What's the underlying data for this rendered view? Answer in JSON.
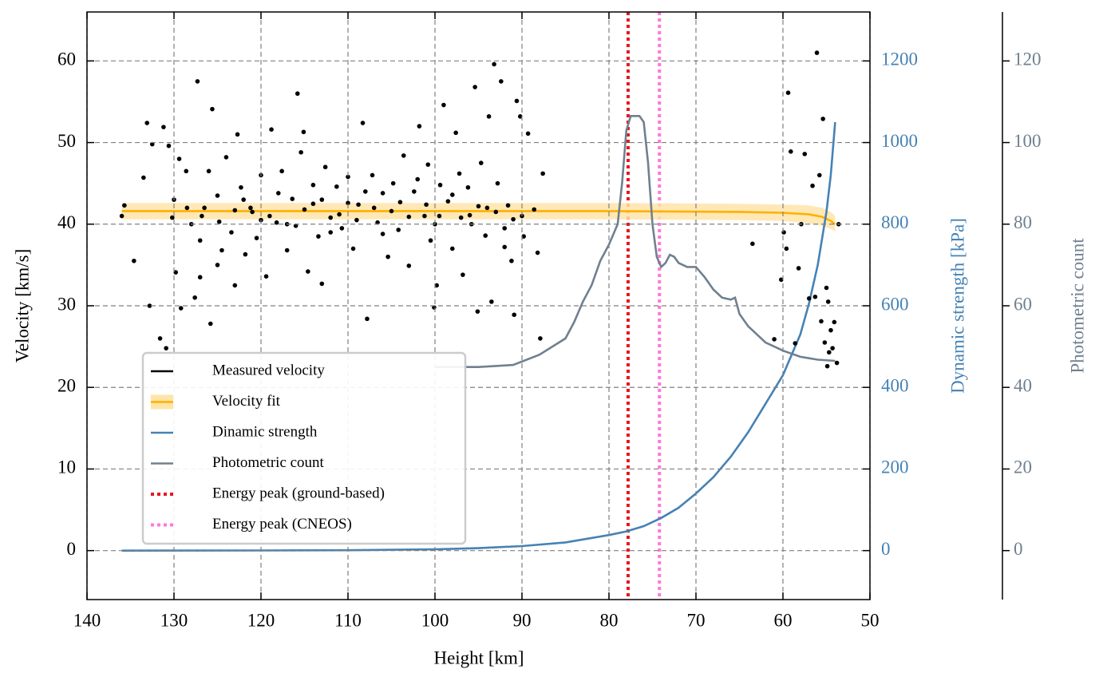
{
  "chart_data": {
    "type": "combo",
    "xlabel": "Height [km]",
    "ylabel": "Velocity [km/s]",
    "y2label": "Dynamic strength [kPa]",
    "y3label": "Photometric count",
    "xlim": [
      140,
      50
    ],
    "xticks": [
      140,
      130,
      120,
      110,
      100,
      90,
      80,
      70,
      60,
      50
    ],
    "ylim": [
      -6,
      66
    ],
    "yticks": [
      0,
      10,
      20,
      30,
      40,
      50,
      60
    ],
    "y2lim": [
      -120,
      1320
    ],
    "y2ticks": [
      0,
      200,
      400,
      600,
      800,
      1000,
      1200
    ],
    "y3lim": [
      -12,
      132
    ],
    "y3ticks": [
      0,
      20,
      40,
      60,
      80,
      100,
      120
    ],
    "grid": true,
    "legend": "lower left",
    "series": [
      {
        "name": "Measured velocity",
        "type": "scatter",
        "color": "#000000",
        "axis": "y",
        "x": [
          136,
          135.7,
          134.6,
          133.5,
          133.1,
          132.8,
          132.5,
          131.6,
          131.2,
          130.9,
          130.6,
          130.2,
          129.8,
          129.4,
          129.2,
          128.6,
          128,
          127.6,
          127.3,
          127,
          126.5,
          126,
          125.8,
          125.6,
          125,
          124.5,
          124,
          123.4,
          123,
          122.7,
          122.3,
          121.8,
          121.2,
          120.5,
          120,
          119.4,
          118.8,
          118.2,
          117.6,
          117,
          116.4,
          115.8,
          115.4,
          115.1,
          114.6,
          114,
          113.4,
          113,
          112.6,
          112,
          111.3,
          110.7,
          110,
          109.4,
          108.8,
          108.3,
          107.8,
          107.2,
          106.6,
          106,
          105.4,
          104.8,
          104.2,
          103.6,
          103,
          102.4,
          101.8,
          101.2,
          100.8,
          100.5,
          100.1,
          99.8,
          99.4,
          99,
          98.5,
          98,
          97.6,
          97.2,
          96.8,
          96.2,
          95.8,
          95.4,
          95.1,
          94.7,
          94.2,
          93.8,
          93.5,
          93.2,
          92.8,
          92.4,
          92,
          91.6,
          91.2,
          90.9,
          90.6,
          90.2,
          89.8,
          89.3,
          88.6,
          88.2,
          87.9,
          87.6,
          121,
          119,
          117,
          115,
          113,
          111,
          109,
          107,
          105,
          103,
          101,
          99.5,
          97,
          95,
          93,
          91,
          120,
          118,
          116,
          114,
          112,
          110,
          108,
          106,
          104,
          102,
          100,
          98,
          96,
          94,
          92,
          90,
          128.5,
          126.8,
          124.8,
          123,
          122,
          130,
          127,
          125,
          63.5,
          61,
          60.2,
          59.9,
          59.6,
          59.4,
          59.1,
          58.6,
          58.2,
          57.9,
          57.5,
          57,
          56.6,
          56.3,
          56.1,
          55.8,
          55.6,
          55.4,
          55.2,
          55,
          54.9,
          54.8,
          54.7,
          54.5,
          54.3,
          54.1,
          53.8,
          53.6
        ],
        "values": [
          41,
          42.3,
          35.5,
          45.7,
          52.4,
          30,
          49.8,
          26,
          51.9,
          24.8,
          49.6,
          40.8,
          34.1,
          48,
          29.7,
          46.5,
          40,
          31,
          57.5,
          33.5,
          42,
          46.5,
          27.8,
          54.1,
          43.5,
          36.8,
          48.2,
          39,
          32.5,
          51,
          44.5,
          36.3,
          42,
          38.3,
          46,
          33.6,
          51.6,
          40.2,
          46.5,
          36.8,
          43.1,
          56,
          48.8,
          51.3,
          34.2,
          42.5,
          38.5,
          32.7,
          47,
          40.8,
          44.6,
          39.5,
          45.8,
          37,
          42.4,
          52.4,
          28.4,
          46,
          40.2,
          43.8,
          36,
          45,
          39.3,
          48.4,
          34.9,
          44,
          52,
          41,
          47.3,
          38,
          29.8,
          32.5,
          44.8,
          54.6,
          42.8,
          37,
          51.2,
          46.2,
          33.8,
          44.5,
          40,
          56.8,
          29.3,
          47.5,
          38.6,
          53.2,
          30.5,
          59.6,
          45,
          57.5,
          39.5,
          42.3,
          35.5,
          28.9,
          55.1,
          53.2,
          38.5,
          51.1,
          41.8,
          36.5,
          26,
          46.2,
          41.5,
          41,
          40,
          41.8,
          43,
          41.2,
          40.5,
          42,
          41.6,
          40.9,
          42.4,
          41,
          40.8,
          42.2,
          41.5,
          40.6,
          40.5,
          43.8,
          39.8,
          44.8,
          39,
          42.6,
          44,
          38.8,
          42.7,
          45.5,
          40,
          43.6,
          41.1,
          42,
          37.2,
          41,
          42,
          41,
          40.3,
          41.7,
          43,
          43,
          38,
          35,
          37.6,
          25.9,
          33.2,
          39,
          37,
          56.1,
          48.9,
          25.4,
          34.6,
          40,
          48.6,
          30.9,
          44.7,
          31.1,
          61,
          46,
          28.1,
          52.9,
          25.5,
          32.2,
          22.6,
          30.5,
          24.3,
          27,
          24.8,
          28,
          23,
          40
        ]
      },
      {
        "name": "Velocity fit",
        "type": "line",
        "color": "#ffb000",
        "band_color": "#ffe4a8",
        "axis": "y",
        "x": [
          136,
          120,
          100,
          80,
          65,
          60,
          57,
          55.5,
          54.5,
          54
        ],
        "values": [
          41.6,
          41.6,
          41.6,
          41.6,
          41.5,
          41.4,
          41.2,
          40.9,
          40.4,
          40.0
        ],
        "lower": [
          40.6,
          40.6,
          40.6,
          40.6,
          40.5,
          40.4,
          40.1,
          39.8,
          39.4,
          39.1
        ],
        "upper": [
          42.6,
          42.6,
          42.6,
          42.6,
          42.5,
          42.4,
          42.3,
          42.0,
          41.5,
          41.0
        ]
      },
      {
        "name": "Dinamic strength",
        "type": "line",
        "color": "#4682b4",
        "axis": "y2",
        "x": [
          136,
          120,
          110,
          100,
          95,
          90,
          85,
          80,
          78,
          76,
          74,
          72,
          70,
          68,
          66,
          64,
          62,
          60,
          58,
          57,
          56,
          55,
          54.5,
          54
        ],
        "values": [
          0,
          0.3,
          1,
          3,
          6,
          11,
          20,
          38,
          47,
          60,
          80,
          105,
          140,
          180,
          230,
          290,
          360,
          430,
          530,
          606,
          700,
          830,
          920,
          1050
        ]
      },
      {
        "name": "Photometric count",
        "type": "line",
        "color": "#708090",
        "axis": "y3",
        "x": [
          100,
          95,
          91,
          88,
          85,
          84,
          83,
          82,
          81,
          80,
          79,
          78.5,
          78,
          77.5,
          76.5,
          76,
          75.5,
          75,
          74.5,
          74,
          73.5,
          73,
          72.5,
          72,
          71,
          70,
          69,
          68,
          67,
          66,
          65.5,
          65,
          64,
          63,
          62,
          61,
          60,
          58,
          56,
          54
        ],
        "values": [
          45,
          45,
          45.5,
          48,
          52,
          56,
          61,
          65,
          71,
          75,
          80,
          90,
          103,
          106.5,
          106.5,
          105,
          95,
          80,
          72,
          69.5,
          70.5,
          72.5,
          72,
          70.5,
          69.5,
          69.5,
          67,
          64,
          62,
          61.5,
          62,
          58,
          55,
          53,
          51,
          50,
          49,
          47.5,
          46.8,
          46.5
        ]
      },
      {
        "name": "Energy peak (ground-based)",
        "type": "vline",
        "color": "#e8161e",
        "x": 77.8
      },
      {
        "name": "Energy peak (CNEOS)",
        "type": "vline",
        "color": "#ff77dd",
        "x": 74.2
      }
    ]
  }
}
